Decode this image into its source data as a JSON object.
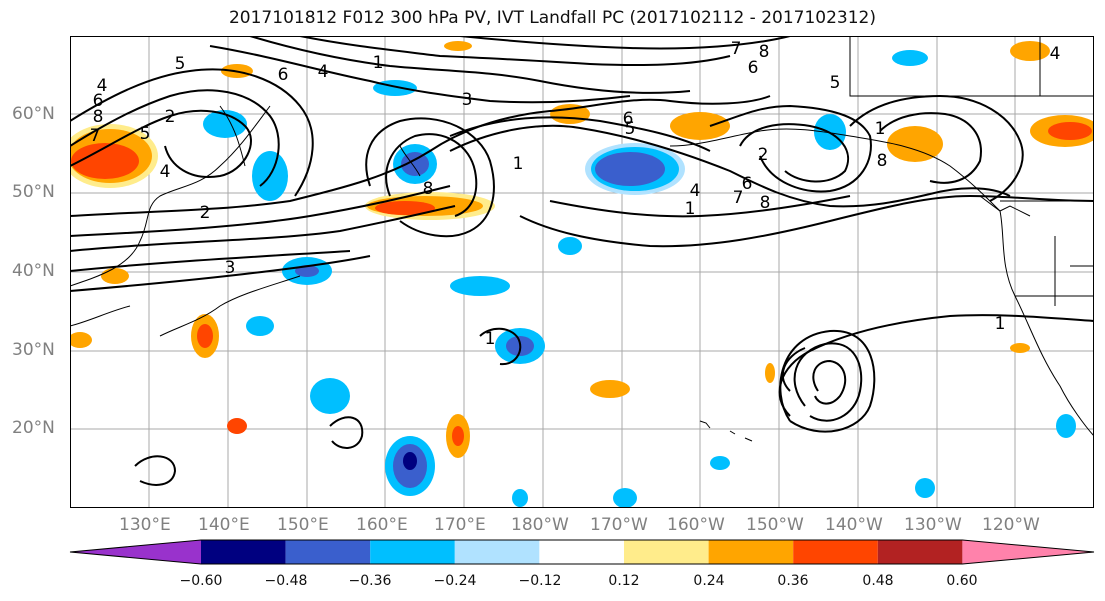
{
  "title": "2017101812 F012 300 hPa PV, IVT Landfall PC (2017102112 - 2017102312)",
  "lat_labels": [
    "60°N",
    "50°N",
    "40°N",
    "30°N",
    "20°N"
  ],
  "lon_labels": [
    "130°E",
    "140°E",
    "150°E",
    "160°E",
    "170°E",
    "180°W",
    "170°W",
    "160°W",
    "150°W",
    "140°W",
    "130°W",
    "120°W"
  ],
  "colorbar": {
    "colors": [
      "#9932cc",
      "#000080",
      "#3a5fcd",
      "#00bfff",
      "#b0e2ff",
      "#ffffff",
      "#ffec8b",
      "#ffa500",
      "#ff4500",
      "#b22222",
      "#ff82ab"
    ],
    "tick_labels": [
      "−0.60",
      "−0.48",
      "−0.36",
      "−0.24",
      "−0.12",
      "0.12",
      "0.24",
      "0.36",
      "0.48",
      "0.60"
    ]
  },
  "contour_labels": [
    "5",
    "6",
    "4",
    "1",
    "3",
    "2",
    "4",
    "6",
    "8",
    "7",
    "5",
    "4",
    "8",
    "2",
    "3",
    "6",
    "7",
    "8",
    "6",
    "5",
    "6",
    "8",
    "4",
    "1",
    "7",
    "8",
    "2",
    "5",
    "4",
    "1",
    "1",
    "1",
    "1"
  ]
}
